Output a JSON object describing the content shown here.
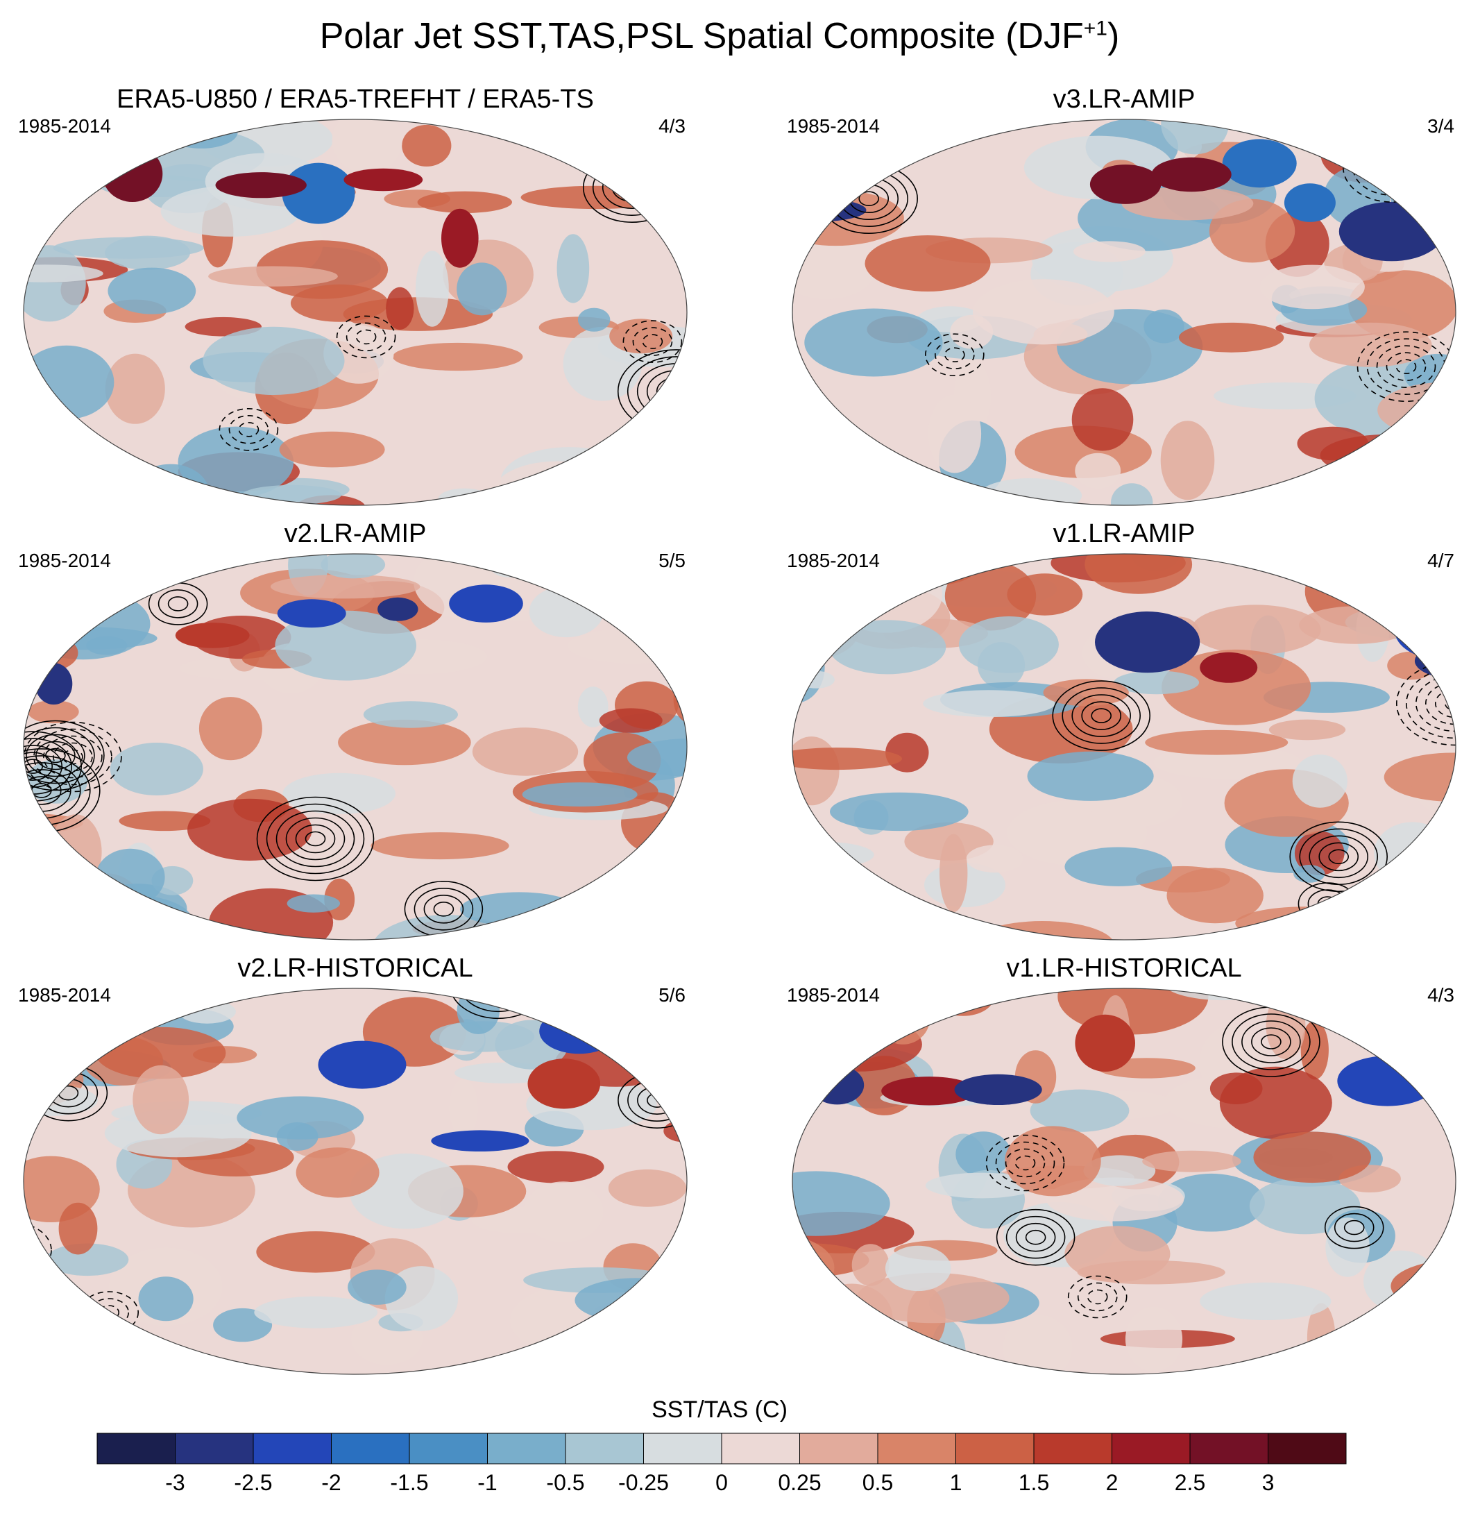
{
  "title": "Polar Jet SST,TAS,PSL Spatial Composite (DJF",
  "title_sup": "+1",
  "panels": [
    {
      "title": "ERA5-U850 / ERA5-TREFHT / ERA5-TS",
      "period": "1985-2014",
      "count": "4/3"
    },
    {
      "title": "v3.LR-AMIP",
      "period": "1985-2014",
      "count": "3/4"
    },
    {
      "title": "v2.LR-AMIP",
      "period": "1985-2014",
      "count": "5/5"
    },
    {
      "title": "v1.LR-AMIP",
      "period": "1985-2014",
      "count": "4/7"
    },
    {
      "title": "v2.LR-HISTORICAL",
      "period": "1985-2014",
      "count": "5/6"
    },
    {
      "title": "v1.LR-HISTORICAL",
      "period": "1985-2014",
      "count": "4/3"
    }
  ],
  "colorbar": {
    "title": "SST/TAS (C)",
    "labels": [
      "-3",
      "-2.5",
      "-2",
      "-1.5",
      "-1",
      "-0.5",
      "-0.25",
      "0",
      "0.25",
      "0.5",
      "1",
      "1.5",
      "2",
      "2.5",
      "3"
    ],
    "colors": [
      "#1a1f4e",
      "#26337f",
      "#2346b8",
      "#2a70c0",
      "#4a8fc4",
      "#79aecb",
      "#a8c6d3",
      "#d7dde0",
      "#ecd9d6",
      "#e2ab9c",
      "#d98468",
      "#cc6145",
      "#b93a2c",
      "#9a1a25",
      "#731126",
      "#4f0a16"
    ]
  }
}
